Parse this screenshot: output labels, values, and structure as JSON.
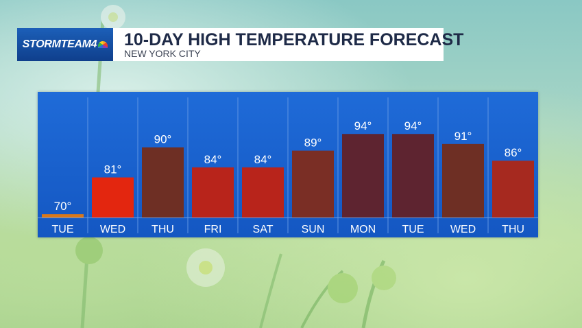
{
  "header": {
    "brand": "STORMTEAM4",
    "title": "10-DAY HIGH TEMPERATURE FORECAST",
    "subtitle": "NEW YORK CITY"
  },
  "chart_data": {
    "type": "bar",
    "title": "10-DAY HIGH TEMPERATURE FORECAST",
    "subtitle": "NEW YORK CITY",
    "categories": [
      "TUE",
      "WED",
      "THU",
      "FRI",
      "SAT",
      "SUN",
      "MON",
      "TUE",
      "WED",
      "THU"
    ],
    "values": [
      70,
      81,
      90,
      84,
      84,
      89,
      94,
      94,
      91,
      86
    ],
    "value_labels": [
      "70°",
      "81°",
      "90°",
      "84°",
      "84°",
      "89°",
      "94°",
      "94°",
      "91°",
      "86°"
    ],
    "bar_colors": [
      "#d9781c",
      "#e3260f",
      "#6e2f24",
      "#b8241b",
      "#b8241b",
      "#7a2e25",
      "#5e2430",
      "#5e2430",
      "#6e2f24",
      "#a6291f"
    ],
    "ylim": [
      69,
      100
    ],
    "grid": false,
    "legend": "none"
  }
}
